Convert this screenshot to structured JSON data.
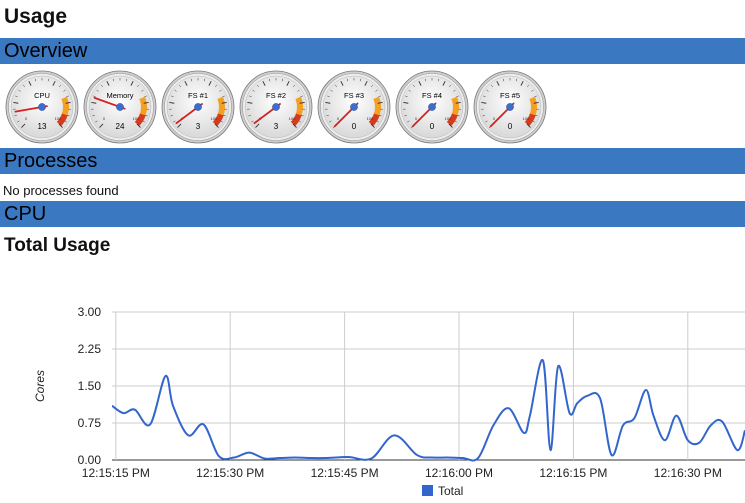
{
  "page": {
    "title": "Usage"
  },
  "sections": {
    "overview": "Overview",
    "processes": "Processes",
    "cpu": "CPU"
  },
  "gauges": [
    {
      "label": "CPU",
      "value": "13",
      "fraction": 0.13
    },
    {
      "label": "Memory",
      "value": "24",
      "fraction": 0.24
    },
    {
      "label": "FS #1",
      "value": "3",
      "fraction": 0.03
    },
    {
      "label": "FS #2",
      "value": "3",
      "fraction": 0.03
    },
    {
      "label": "FS #3",
      "value": "0",
      "fraction": 0.0
    },
    {
      "label": "FS #4",
      "value": "0",
      "fraction": 0.0
    },
    {
      "label": "FS #5",
      "value": "0",
      "fraction": 0.0
    }
  ],
  "gauge_scale": {
    "min_label": "0",
    "max_label": "100"
  },
  "processes": {
    "empty_text": "No processes found"
  },
  "cpu": {
    "subheading": "Total Usage"
  },
  "colors": {
    "section_bar": "#3a78c2",
    "series": "#3366cc",
    "gauge_needle": "#d62020"
  },
  "chart_data": {
    "type": "line",
    "title": "",
    "xlabel": "",
    "ylabel": "Cores",
    "ylim": [
      0,
      3
    ],
    "y_ticks": [
      "0.00",
      "0.75",
      "1.50",
      "2.25",
      "3.00"
    ],
    "x_ticks": [
      "12:15:15 PM",
      "12:15:30 PM",
      "12:15:45 PM",
      "12:16:00 PM",
      "12:16:15 PM",
      "12:16:30 PM"
    ],
    "grid": true,
    "legend": "bottom",
    "series": [
      {
        "name": "Total",
        "x": [
          0,
          1.5,
          3,
          5,
          7,
          8,
          10,
          12,
          14,
          16,
          18,
          20,
          22,
          24,
          26,
          28,
          31,
          34,
          37,
          40,
          42,
          44,
          46,
          48,
          50,
          52,
          54,
          54.8,
          56.5,
          57.5,
          58.5,
          60,
          61,
          62.3,
          64,
          65.5,
          67,
          68.5,
          70,
          71,
          72.5,
          74,
          75.5,
          77,
          78.5,
          80,
          82,
          83
        ],
        "y": [
          1.1,
          0.95,
          1.02,
          0.72,
          1.7,
          1.1,
          0.5,
          0.72,
          0.08,
          0.05,
          0.15,
          0.03,
          0.04,
          0.05,
          0.04,
          0.04,
          0.06,
          0.03,
          0.5,
          0.1,
          0.05,
          0.05,
          0.04,
          0.04,
          0.7,
          1.05,
          0.55,
          0.9,
          2.02,
          0.2,
          1.9,
          0.95,
          1.15,
          1.3,
          1.25,
          0.1,
          0.7,
          0.85,
          1.42,
          0.9,
          0.4,
          0.9,
          0.4,
          0.35,
          0.7,
          0.78,
          0.2,
          0.6
        ]
      }
    ]
  }
}
